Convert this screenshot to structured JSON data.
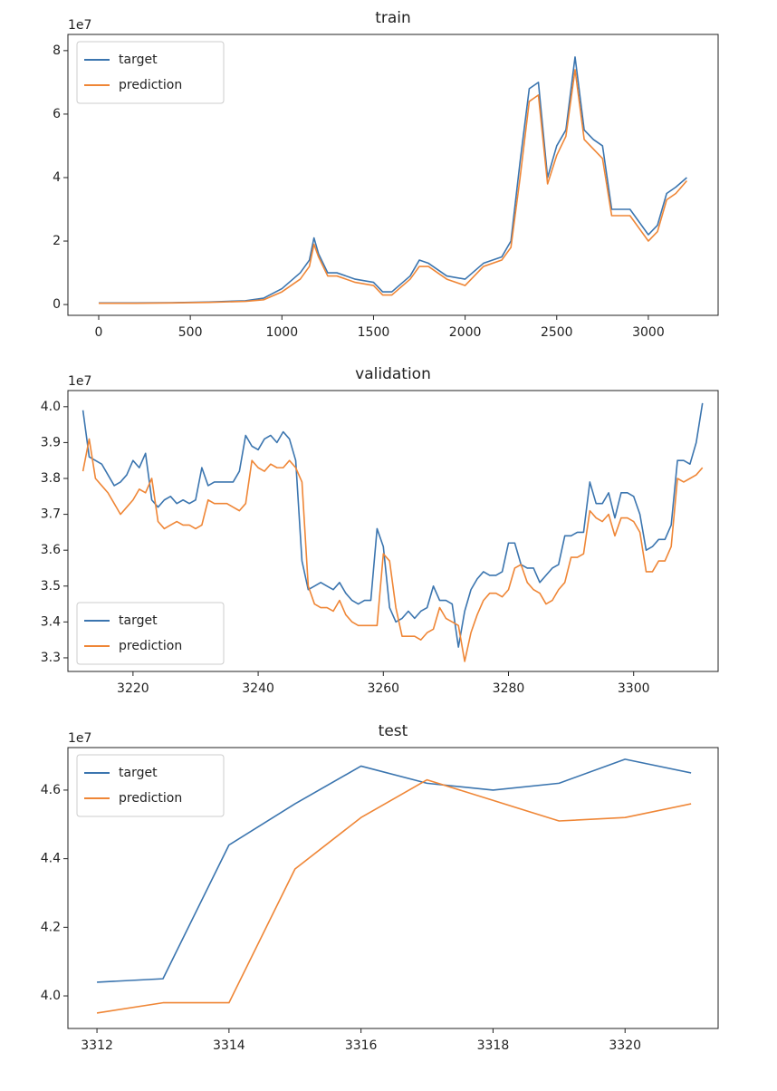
{
  "chart_data": [
    {
      "type": "line",
      "title": "train",
      "y_offset_label": "1e7",
      "legend": "upper left",
      "x": [
        0,
        200,
        400,
        600,
        800,
        900,
        1000,
        1100,
        1150,
        1175,
        1200,
        1250,
        1300,
        1400,
        1500,
        1550,
        1600,
        1700,
        1750,
        1800,
        1900,
        2000,
        2100,
        2200,
        2250,
        2300,
        2350,
        2400,
        2450,
        2500,
        2550,
        2600,
        2650,
        2700,
        2750,
        2800,
        2900,
        3000,
        3050,
        3100,
        3150,
        3210
      ],
      "series": [
        {
          "name": "target",
          "color": "#3b75af",
          "values": [
            0.05,
            0.05,
            0.06,
            0.08,
            0.12,
            0.2,
            0.5,
            1.0,
            1.4,
            2.1,
            1.6,
            1.0,
            1.0,
            0.8,
            0.7,
            0.4,
            0.4,
            0.9,
            1.4,
            1.3,
            0.9,
            0.8,
            1.3,
            1.5,
            2.0,
            4.5,
            6.8,
            7.0,
            4.0,
            5.0,
            5.5,
            7.8,
            5.5,
            5.2,
            5.0,
            3.0,
            3.0,
            2.2,
            2.5,
            3.5,
            3.7,
            4.0
          ]
        },
        {
          "name": "prediction",
          "color": "#ef8636",
          "values": [
            0.04,
            0.04,
            0.05,
            0.07,
            0.1,
            0.15,
            0.4,
            0.8,
            1.2,
            1.9,
            1.5,
            0.9,
            0.9,
            0.7,
            0.6,
            0.3,
            0.3,
            0.8,
            1.2,
            1.2,
            0.8,
            0.6,
            1.2,
            1.4,
            1.8,
            4.0,
            6.4,
            6.6,
            3.8,
            4.7,
            5.3,
            7.4,
            5.2,
            4.9,
            4.6,
            2.8,
            2.8,
            2.0,
            2.3,
            3.3,
            3.5,
            3.9
          ]
        }
      ],
      "xlim": [
        -168,
        3381
      ],
      "ylim": [
        -0.34,
        8.51
      ],
      "xticks": [
        0,
        500,
        1000,
        1500,
        2000,
        2500,
        3000
      ],
      "yticks": [
        0,
        2,
        4,
        6,
        8
      ]
    },
    {
      "type": "line",
      "title": "validation",
      "y_offset_label": "1e7",
      "legend": "lower left",
      "x": [
        3212,
        3213,
        3214,
        3215,
        3216,
        3217,
        3218,
        3219,
        3220,
        3221,
        3222,
        3223,
        3224,
        3225,
        3226,
        3227,
        3228,
        3229,
        3230,
        3231,
        3232,
        3233,
        3234,
        3235,
        3236,
        3237,
        3238,
        3239,
        3240,
        3241,
        3242,
        3243,
        3244,
        3245,
        3246,
        3247,
        3248,
        3249,
        3250,
        3251,
        3252,
        3253,
        3254,
        3255,
        3256,
        3257,
        3258,
        3259,
        3260,
        3261,
        3262,
        3263,
        3264,
        3265,
        3266,
        3267,
        3268,
        3269,
        3270,
        3271,
        3272,
        3273,
        3274,
        3275,
        3276,
        3277,
        3278,
        3279,
        3280,
        3281,
        3282,
        3283,
        3284,
        3285,
        3286,
        3287,
        3288,
        3289,
        3290,
        3291,
        3292,
        3293,
        3294,
        3295,
        3296,
        3297,
        3298,
        3299,
        3300,
        3301,
        3302,
        3303,
        3304,
        3305,
        3306,
        3307,
        3308,
        3309,
        3310,
        3311
      ],
      "series": [
        {
          "name": "target",
          "color": "#3b75af",
          "values": [
            3.99,
            3.86,
            3.85,
            3.84,
            3.81,
            3.78,
            3.79,
            3.81,
            3.85,
            3.83,
            3.87,
            3.74,
            3.72,
            3.74,
            3.75,
            3.73,
            3.74,
            3.73,
            3.74,
            3.83,
            3.78,
            3.79,
            3.79,
            3.79,
            3.79,
            3.82,
            3.92,
            3.89,
            3.88,
            3.91,
            3.92,
            3.9,
            3.93,
            3.91,
            3.85,
            3.57,
            3.49,
            3.5,
            3.51,
            3.5,
            3.49,
            3.51,
            3.48,
            3.46,
            3.45,
            3.46,
            3.46,
            3.66,
            3.61,
            3.44,
            3.4,
            3.41,
            3.43,
            3.41,
            3.43,
            3.44,
            3.5,
            3.46,
            3.46,
            3.45,
            3.33,
            3.43,
            3.49,
            3.52,
            3.54,
            3.53,
            3.53,
            3.54,
            3.62,
            3.62,
            3.56,
            3.55,
            3.55,
            3.51,
            3.53,
            3.55,
            3.56,
            3.64,
            3.64,
            3.65,
            3.65,
            3.79,
            3.73,
            3.73,
            3.76,
            3.69,
            3.76,
            3.76,
            3.75,
            3.7,
            3.6,
            3.61,
            3.63,
            3.63,
            3.67,
            3.85,
            3.85,
            3.84,
            3.9,
            4.01
          ]
        },
        {
          "name": "prediction",
          "color": "#ef8636",
          "values": [
            3.82,
            3.91,
            3.8,
            3.78,
            3.76,
            3.73,
            3.7,
            3.72,
            3.74,
            3.77,
            3.76,
            3.8,
            3.68,
            3.66,
            3.67,
            3.68,
            3.67,
            3.67,
            3.66,
            3.67,
            3.74,
            3.73,
            3.73,
            3.73,
            3.72,
            3.71,
            3.73,
            3.85,
            3.83,
            3.82,
            3.84,
            3.83,
            3.83,
            3.85,
            3.83,
            3.79,
            3.5,
            3.45,
            3.44,
            3.44,
            3.43,
            3.46,
            3.42,
            3.4,
            3.39,
            3.39,
            3.39,
            3.39,
            3.59,
            3.57,
            3.44,
            3.36,
            3.36,
            3.36,
            3.35,
            3.37,
            3.38,
            3.44,
            3.41,
            3.4,
            3.39,
            3.29,
            3.37,
            3.42,
            3.46,
            3.48,
            3.48,
            3.47,
            3.49,
            3.55,
            3.56,
            3.51,
            3.49,
            3.48,
            3.45,
            3.46,
            3.49,
            3.51,
            3.58,
            3.58,
            3.59,
            3.71,
            3.69,
            3.68,
            3.7,
            3.64,
            3.69,
            3.69,
            3.68,
            3.65,
            3.54,
            3.54,
            3.57,
            3.57,
            3.61,
            3.8,
            3.79,
            3.8,
            3.81,
            3.83
          ]
        }
      ],
      "xlim": [
        3209.6,
        3313.5
      ],
      "ylim": [
        3.262,
        4.045
      ],
      "xticks": [
        3220,
        3240,
        3260,
        3280,
        3300
      ],
      "yticks": [
        3.3,
        3.4,
        3.5,
        3.6,
        3.7,
        3.8,
        3.9,
        {
          "value": 4,
          "label": "4.0"
        }
      ]
    },
    {
      "type": "line",
      "title": "test",
      "y_offset_label": "1e7",
      "legend": "upper left",
      "x": [
        3312,
        3313,
        3314,
        3315,
        3316,
        3317,
        3318,
        3319,
        3320,
        3321
      ],
      "series": [
        {
          "name": "target",
          "color": "#3b75af",
          "values": [
            4.04,
            4.05,
            4.44,
            4.56,
            4.67,
            4.62,
            4.6,
            4.62,
            4.69,
            4.65
          ]
        },
        {
          "name": "prediction",
          "color": "#ef8636",
          "values": [
            3.95,
            3.98,
            3.98,
            4.37,
            4.52,
            4.63,
            4.57,
            4.51,
            4.52,
            4.56
          ]
        }
      ],
      "xlim": [
        3311.56,
        3321.41
      ],
      "ylim": [
        3.905,
        4.724
      ],
      "xticks": [
        3312,
        3314,
        3316,
        3318,
        3320
      ],
      "yticks": [
        {
          "value": 4,
          "label": "4.0"
        },
        4.2,
        4.4,
        4.6
      ]
    }
  ]
}
